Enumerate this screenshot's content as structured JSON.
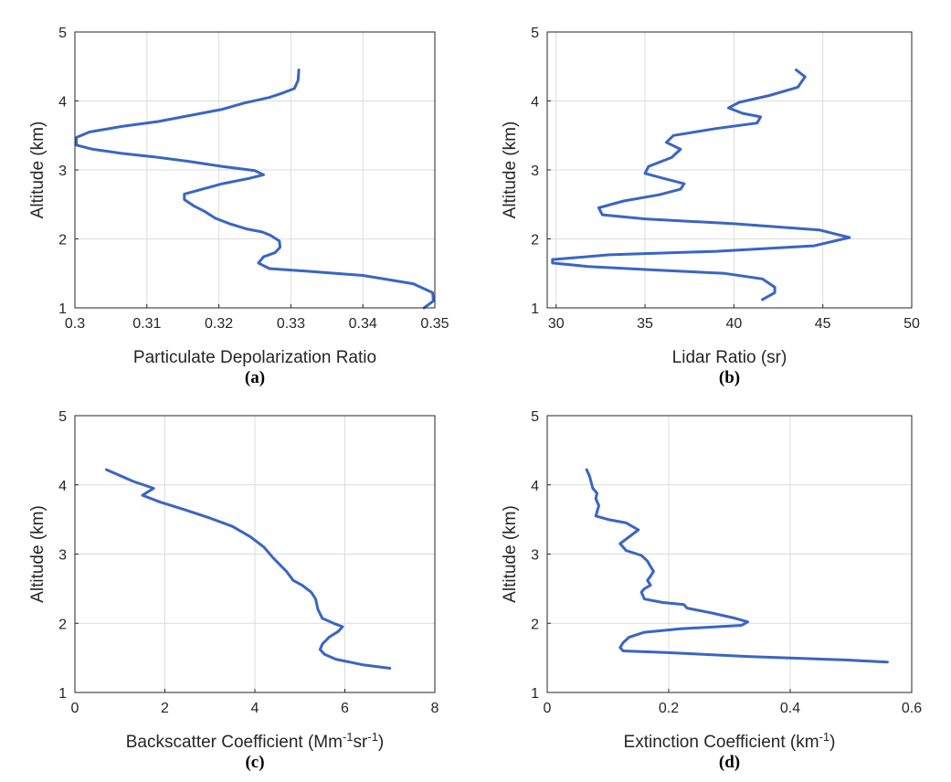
{
  "chart_data": [
    {
      "type": "line",
      "panel_label": "(a)",
      "xlabel": "Particulate Depolarization Ratio",
      "ylabel": "Altitude (km)",
      "xlim": [
        0.3,
        0.35
      ],
      "ylim": [
        1,
        5
      ],
      "xticks": [
        0.3,
        0.31,
        0.32,
        0.33,
        0.34,
        0.35
      ],
      "xtick_labels": [
        "0.3",
        "0.31",
        "0.32",
        "0.33",
        "0.34",
        "0.35"
      ],
      "yticks": [
        1,
        2,
        3,
        4,
        5
      ],
      "ytick_labels": [
        "1",
        "2",
        "3",
        "4",
        "5"
      ],
      "grid": true,
      "series": [
        {
          "name": "Depolarization ratio",
          "color": "#3a65c4",
          "x": [
            0.3485,
            0.3498,
            0.3497,
            0.347,
            0.34,
            0.3325,
            0.327,
            0.3255,
            0.3262,
            0.3278,
            0.3285,
            0.3284,
            0.3272,
            0.326,
            0.324,
            0.3215,
            0.3195,
            0.318,
            0.3165,
            0.3152,
            0.3152,
            0.317,
            0.3205,
            0.3243,
            0.3262,
            0.325,
            0.3205,
            0.316,
            0.311,
            0.3065,
            0.3025,
            0.3002,
            0.3002,
            0.302,
            0.3065,
            0.3115,
            0.3165,
            0.3205,
            0.3235,
            0.327,
            0.329,
            0.3305,
            0.331,
            0.3311
          ],
          "y": [
            1.0,
            1.1,
            1.22,
            1.35,
            1.47,
            1.53,
            1.57,
            1.65,
            1.74,
            1.8,
            1.88,
            1.97,
            2.05,
            2.1,
            2.14,
            2.22,
            2.3,
            2.4,
            2.48,
            2.57,
            2.65,
            2.7,
            2.8,
            2.88,
            2.93,
            2.99,
            3.05,
            3.12,
            3.19,
            3.24,
            3.3,
            3.36,
            3.47,
            3.55,
            3.63,
            3.7,
            3.8,
            3.88,
            3.97,
            4.05,
            4.12,
            4.18,
            4.3,
            4.45
          ]
        }
      ]
    },
    {
      "type": "line",
      "panel_label": "(b)",
      "xlabel": "Lidar Ratio (sr)",
      "ylabel": "Altitude (km)",
      "xlim": [
        29.5,
        50
      ],
      "ylim": [
        1,
        5
      ],
      "xticks": [
        30,
        35,
        40,
        45,
        50
      ],
      "xtick_labels": [
        "30",
        "35",
        "40",
        "45",
        "50"
      ],
      "yticks": [
        1,
        2,
        3,
        4,
        5
      ],
      "ytick_labels": [
        "1",
        "2",
        "3",
        "4",
        "5"
      ],
      "grid": true,
      "series": [
        {
          "name": "Lidar ratio",
          "color": "#3a65c4",
          "x": [
            41.6,
            42.3,
            42.3,
            41.6,
            39.5,
            35.5,
            31.8,
            29.8,
            29.8,
            33.0,
            39.0,
            44.5,
            46.5,
            44.8,
            40.0,
            35.0,
            32.6,
            32.4,
            33.8,
            35.8,
            37.0,
            37.2,
            36.0,
            35.0,
            35.2,
            36.5,
            37.0,
            36.2,
            36.6,
            39.0,
            41.3,
            41.5,
            40.5,
            39.7,
            40.3,
            42.0,
            43.6,
            44.0,
            43.5
          ],
          "y": [
            1.12,
            1.22,
            1.3,
            1.42,
            1.5,
            1.55,
            1.6,
            1.65,
            1.7,
            1.77,
            1.82,
            1.9,
            2.02,
            2.13,
            2.22,
            2.29,
            2.35,
            2.45,
            2.55,
            2.64,
            2.72,
            2.8,
            2.88,
            2.95,
            3.05,
            3.18,
            3.3,
            3.4,
            3.5,
            3.6,
            3.68,
            3.77,
            3.82,
            3.9,
            3.98,
            4.08,
            4.2,
            4.35,
            4.45
          ]
        }
      ]
    },
    {
      "type": "line",
      "panel_label": "(c)",
      "xlabel": "Backscatter Coefficient (Mm",
      "xlabel_sup1": "-1",
      "xlabel_mid": "sr",
      "xlabel_sup2": "-1",
      "xlabel_end": ")",
      "ylabel": "Altitude (km)",
      "xlim": [
        0,
        8
      ],
      "ylim": [
        1,
        5
      ],
      "xticks": [
        0,
        2,
        4,
        6,
        8
      ],
      "xtick_labels": [
        "0",
        "2",
        "4",
        "6",
        "8"
      ],
      "yticks": [
        1,
        2,
        3,
        4,
        5
      ],
      "ytick_labels": [
        "1",
        "2",
        "3",
        "4",
        "5"
      ],
      "grid": true,
      "series": [
        {
          "name": "Backscatter coefficient",
          "color": "#3a65c4",
          "x": [
            7.0,
            6.4,
            5.8,
            5.55,
            5.45,
            5.5,
            5.65,
            5.85,
            5.95,
            5.75,
            5.5,
            5.4,
            5.35,
            5.25,
            5.05,
            4.85,
            4.7,
            4.55,
            4.4,
            4.2,
            3.9,
            3.5,
            3.0,
            2.4,
            1.9,
            1.5,
            1.75,
            1.3,
            0.7
          ],
          "y": [
            1.35,
            1.4,
            1.48,
            1.55,
            1.62,
            1.7,
            1.8,
            1.88,
            1.95,
            2.0,
            2.07,
            2.2,
            2.35,
            2.45,
            2.55,
            2.62,
            2.75,
            2.85,
            2.95,
            3.1,
            3.25,
            3.4,
            3.52,
            3.65,
            3.75,
            3.85,
            3.95,
            4.05,
            4.22
          ]
        }
      ]
    },
    {
      "type": "line",
      "panel_label": "(d)",
      "xlabel": "Extinction Coefficient (km",
      "xlabel_sup1": "-1",
      "xlabel_end": ")",
      "ylabel": "Altitude (km)",
      "xlim": [
        0,
        0.6
      ],
      "ylim": [
        1,
        5
      ],
      "xticks": [
        0,
        0.2,
        0.4,
        0.6
      ],
      "xtick_labels": [
        "0",
        "0.2",
        "0.4",
        "0.6"
      ],
      "yticks": [
        1,
        2,
        3,
        4,
        5
      ],
      "ytick_labels": [
        "1",
        "2",
        "3",
        "4",
        "5"
      ],
      "grid": true,
      "series": [
        {
          "name": "Extinction coefficient",
          "color": "#3a65c4",
          "x": [
            0.56,
            0.49,
            0.33,
            0.19,
            0.125,
            0.12,
            0.125,
            0.135,
            0.16,
            0.22,
            0.32,
            0.33,
            0.31,
            0.27,
            0.23,
            0.225,
            0.19,
            0.16,
            0.155,
            0.16,
            0.17,
            0.165,
            0.17,
            0.175,
            0.17,
            0.165,
            0.155,
            0.13,
            0.12,
            0.15,
            0.13,
            0.1,
            0.08,
            0.085,
            0.08,
            0.082,
            0.075,
            0.072,
            0.07,
            0.065
          ],
          "y": [
            1.44,
            1.47,
            1.52,
            1.58,
            1.6,
            1.65,
            1.72,
            1.8,
            1.87,
            1.92,
            1.97,
            2.02,
            2.07,
            2.15,
            2.22,
            2.27,
            2.3,
            2.35,
            2.45,
            2.5,
            2.55,
            2.62,
            2.68,
            2.75,
            2.82,
            2.9,
            2.98,
            3.05,
            3.15,
            3.35,
            3.45,
            3.5,
            3.55,
            3.7,
            3.8,
            3.88,
            3.95,
            4.05,
            4.12,
            4.22
          ]
        }
      ]
    }
  ]
}
